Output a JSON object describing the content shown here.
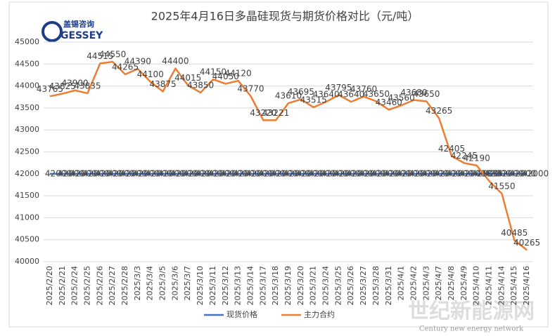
{
  "chart_data": {
    "type": "line",
    "title": "2025年4月16日多晶硅现货与期货价格对比（元/吨）",
    "categories": [
      "2025/2/20",
      "2025/2/21",
      "2025/2/24",
      "2025/2/25",
      "2025/2/26",
      "2025/2/27",
      "2025/2/28",
      "2025/3/3",
      "2025/3/4",
      "2025/3/5",
      "2025/3/6",
      "2025/3/7",
      "2025/3/10",
      "2025/3/11",
      "2025/3/12",
      "2025/3/13",
      "2025/3/14",
      "2025/3/17",
      "2025/3/18",
      "2025/3/19",
      "2025/3/20",
      "2025/3/21",
      "2025/3/24",
      "2025/3/25",
      "2025/3/26",
      "2025/3/27",
      "2025/3/28",
      "2025/3/31",
      "2025/4/1",
      "2025/4/2",
      "2025/4/3",
      "2025/4/7",
      "2025/4/8",
      "2025/4/9",
      "2025/4/10",
      "2025/4/11",
      "2025/4/14",
      "2025/4/15",
      "2025/4/16"
    ],
    "series": [
      {
        "name": "现货价格",
        "color": "#4472c4",
        "values": [
          42000,
          42000,
          42000,
          42000,
          42000,
          42000,
          42000,
          42000,
          42000,
          42000,
          42000,
          42000,
          42000,
          42000,
          42000,
          42000,
          42000,
          42000,
          42000,
          42000,
          42000,
          42000,
          42000,
          42000,
          42000,
          42000,
          42000,
          42000,
          42000,
          42000,
          42000,
          42000,
          42000,
          42000,
          42000,
          42000,
          42000,
          42000,
          42000
        ]
      },
      {
        "name": "主力合约",
        "color": "#ed7d31",
        "values": [
          43765,
          43825,
          43900,
          43835,
          44515,
          44550,
          44265,
          44390,
          44100,
          43875,
          44400,
          44015,
          43850,
          44150,
          44050,
          44120,
          43770,
          43220,
          43221,
          43610,
          43695,
          43515,
          43640,
          43795,
          43640,
          43760,
          43650,
          43460,
          43560,
          43680,
          43650,
          43265,
          42405,
          42245,
          42190,
          41835,
          41550,
          40485,
          40265
        ]
      }
    ],
    "ylim": [
      40000,
      45000
    ],
    "yticks": [
      40000,
      40500,
      41000,
      41500,
      42000,
      42500,
      43000,
      43500,
      44000,
      44500,
      45000
    ],
    "grid": true,
    "legend": "bottom"
  },
  "logo": {
    "name": "盖锡咨询",
    "brand": "GESSEY"
  },
  "watermark": {
    "name": "世纪新能源网",
    "subtitle": "Century new energy network"
  }
}
